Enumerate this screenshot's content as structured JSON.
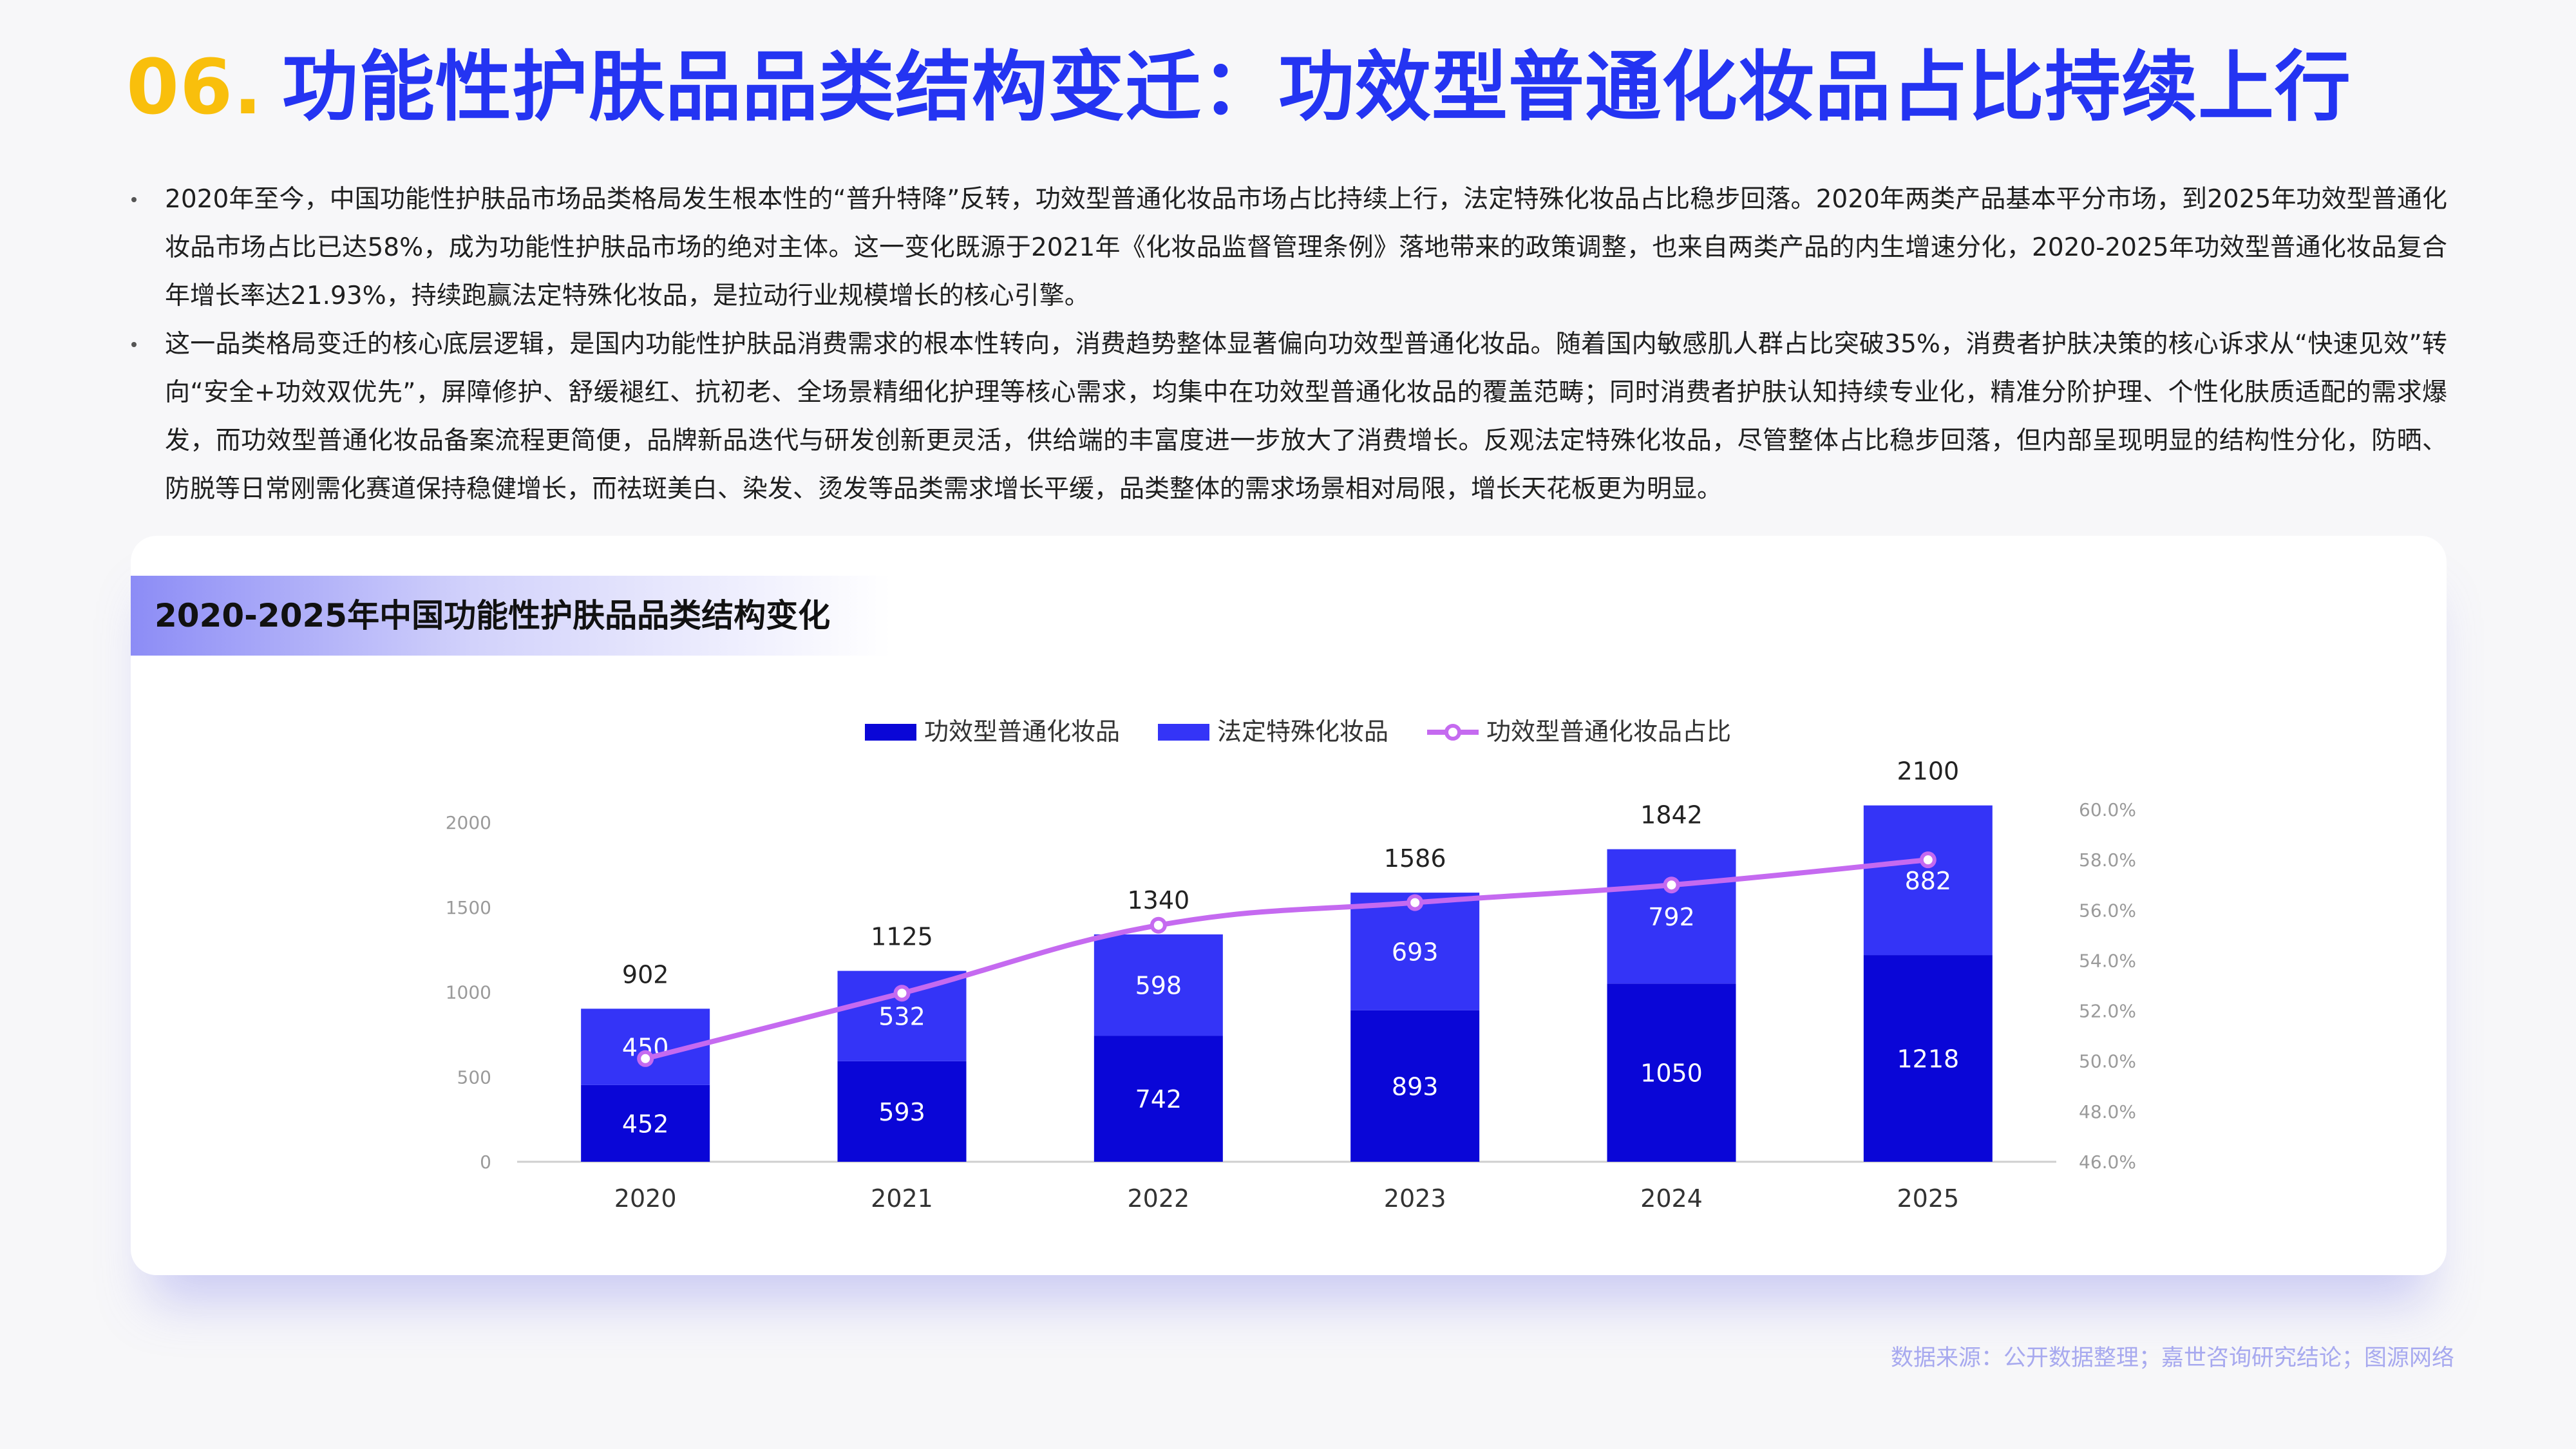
{
  "header": {
    "number": "06.",
    "title": "功能性护肤品品类结构变迁：功效型普通化妆品占比持续上行"
  },
  "bullets": [
    "2020年至今，中国功能性护肤品市场品类格局发生根本性的“普升特降”反转，功效型普通化妆品市场占比持续上行，法定特殊化妆品占比稳步回落。2020年两类产品基本平分市场，到2025年功效型普通化妆品市场占比已达58%，成为功能性护肤品市场的绝对主体。这一变化既源于2021年《化妆品监督管理条例》落地带来的政策调整，也来自两类产品的内生增速分化，2020-2025年功效型普通化妆品复合年增长率达21.93%，持续跑赢法定特殊化妆品，是拉动行业规模增长的核心引擎。",
    "这一品类格局变迁的核心底层逻辑，是国内功能性护肤品消费需求的根本性转向，消费趋势整体显著偏向功效型普通化妆品。随着国内敏感肌人群占比突破35%，消费者护肤决策的核心诉求从“快速见效”转向“安全+功效双优先”，屏障修护、舒缓褪红、抗初老、全场景精细化护理等核心需求，均集中在功效型普通化妆品的覆盖范畴；同时消费者护肤认知持续专业化，精准分阶护理、个性化肤质适配的需求爆发，而功效型普通化妆品备案流程更简便，品牌新品迭代与研发创新更灵活，供给端的丰富度进一步放大了消费增长。反观法定特殊化妆品，尽管整体占比稳步回落，但内部呈现明显的结构性分化，防晒、防脱等日常刚需化赛道保持稳健增长，而祛斑美白、染发、烫发等品类需求增长平缓，品类整体的需求场景相对局限，增长天花板更为明显。"
  ],
  "card": {
    "title": "2020-2025年中国功能性护肤品品类结构变化"
  },
  "colors": {
    "series_general": "#0a06d7",
    "series_special": "#3434f7",
    "series_share": "#c56af0",
    "title_number": "#f9bf0c",
    "title_text": "#2434f2"
  },
  "chart_data": {
    "type": "bar",
    "stacked": true,
    "categories": [
      "2020",
      "2021",
      "2022",
      "2023",
      "2024",
      "2025"
    ],
    "series": [
      {
        "name": "功效型普通化妆品",
        "type": "bar",
        "values": [
          452,
          593,
          742,
          893,
          1050,
          1218
        ]
      },
      {
        "name": "法定特殊化妆品",
        "type": "bar",
        "values": [
          450,
          532,
          598,
          693,
          792,
          882
        ]
      },
      {
        "name": "功效型普通化妆品占比",
        "type": "line",
        "axis": "right",
        "values": [
          50.1,
          52.7,
          55.4,
          56.3,
          57.0,
          58.0
        ]
      }
    ],
    "totals": [
      902,
      1125,
      1340,
      1586,
      1842,
      2100
    ],
    "y_left": {
      "min": 0,
      "max": 2000,
      "ticks": [
        "0",
        "500",
        "1000",
        "1500",
        "2000"
      ]
    },
    "y_right": {
      "min": 46,
      "max": 60,
      "ticks": [
        "46.0%",
        "48.0%",
        "50.0%",
        "52.0%",
        "54.0%",
        "56.0%",
        "58.0%",
        "60.0%"
      ]
    },
    "legend_position": "top-center",
    "grid": false
  },
  "source": "数据来源：公开数据整理；嘉世咨询研究结论；图源网络"
}
